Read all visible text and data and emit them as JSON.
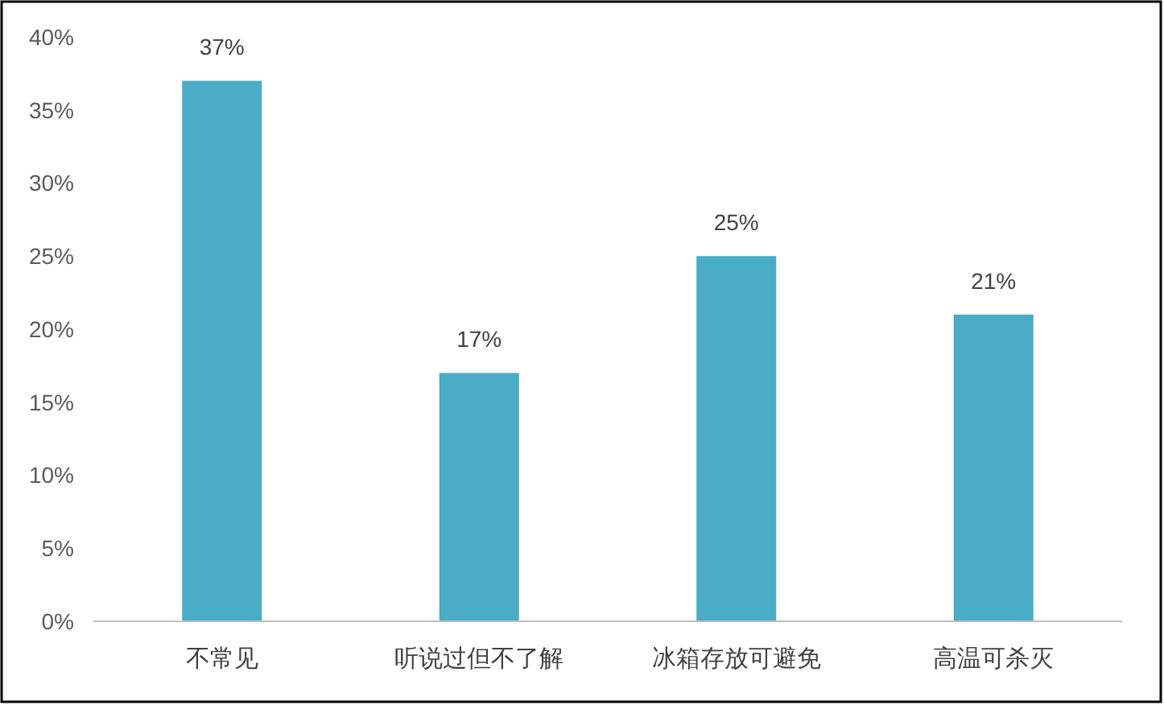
{
  "chart_data": {
    "type": "bar",
    "categories": [
      "不常见",
      "听说过但不了解",
      "冰箱存放可避免",
      "高温可杀灭"
    ],
    "values": [
      37,
      17,
      25,
      21
    ],
    "color": "#4bacc6",
    "value_labels": [
      "37%",
      "17%",
      "25%",
      "21%"
    ],
    "ylim": [
      0,
      40
    ],
    "yticks": [
      {
        "value": 0,
        "label": "0%"
      },
      {
        "value": 5,
        "label": "5%"
      },
      {
        "value": 10,
        "label": "10%"
      },
      {
        "value": 15,
        "label": "15%"
      },
      {
        "value": 20,
        "label": "20%"
      },
      {
        "value": 25,
        "label": "25%"
      },
      {
        "value": 30,
        "label": "30%"
      },
      {
        "value": 35,
        "label": "35%"
      },
      {
        "value": 40,
        "label": "40%"
      }
    ],
    "grid": false
  }
}
